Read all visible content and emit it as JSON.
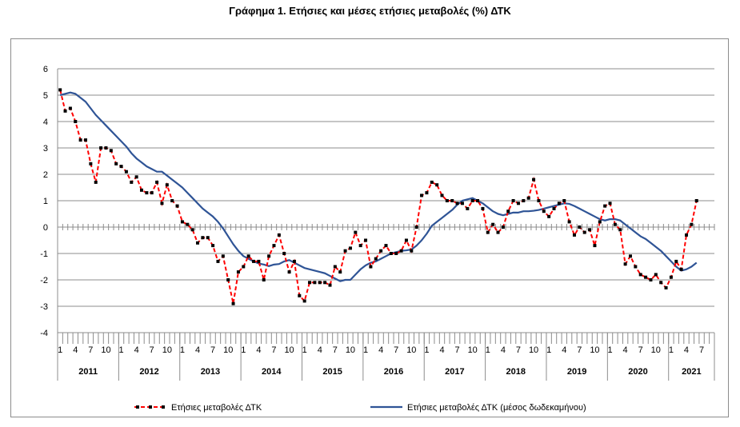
{
  "title": "Γράφημα 1. Ετήσιες και μέσες ετήσιες μεταβολές (%) ΔΤΚ",
  "chart_data": {
    "type": "line",
    "title": "Γράφημα 1. Ετήσιες και μέσες ετήσιες μεταβολές (%) ΔΤΚ",
    "ylim": [
      -4,
      6
    ],
    "yticks": [
      -4,
      -3,
      -2,
      -1,
      0,
      1,
      2,
      3,
      4,
      5,
      6
    ],
    "grid": true,
    "legend_position": "bottom",
    "month_labels": [
      "1",
      "4",
      "7",
      "10"
    ],
    "years": [
      "2011",
      "2012",
      "2013",
      "2014",
      "2015",
      "2016",
      "2017",
      "2018",
      "2019",
      "2020",
      "2021"
    ],
    "x_start": "2011-01",
    "x_end": "2021-09",
    "series": [
      {
        "name": "Ετήσιες μεταβολές ΔΤΚ",
        "color": "#ff0000",
        "marker_color": "#000000",
        "style": "dashed-with-markers",
        "values": [
          5.2,
          4.4,
          4.5,
          4.0,
          3.3,
          3.3,
          2.4,
          1.7,
          3.0,
          3.0,
          2.9,
          2.4,
          2.3,
          2.1,
          1.7,
          1.9,
          1.4,
          1.3,
          1.3,
          1.7,
          0.9,
          1.6,
          1.0,
          0.8,
          0.2,
          0.1,
          -0.1,
          -0.6,
          -0.4,
          -0.4,
          -0.7,
          -1.3,
          -1.1,
          -2.0,
          -2.9,
          -1.7,
          -1.5,
          -1.1,
          -1.3,
          -1.3,
          -2.0,
          -1.1,
          -0.7,
          -0.3,
          -1.0,
          -1.7,
          -1.3,
          -2.6,
          -2.8,
          -2.1,
          -2.1,
          -2.1,
          -2.1,
          -2.2,
          -1.5,
          -1.7,
          -0.9,
          -0.8,
          -0.2,
          -0.7,
          -0.5,
          -1.5,
          -1.2,
          -0.9,
          -0.7,
          -1.0,
          -1.0,
          -0.9,
          -0.5,
          -0.9,
          0.0,
          1.2,
          1.3,
          1.7,
          1.6,
          1.2,
          1.0,
          1.0,
          0.9,
          0.9,
          0.7,
          1.0,
          1.0,
          0.7,
          -0.2,
          0.1,
          -0.2,
          0.0,
          0.6,
          1.0,
          0.9,
          1.0,
          1.1,
          1.8,
          1.0,
          0.6,
          0.4,
          0.7,
          0.9,
          1.0,
          0.2,
          -0.3,
          0.0,
          -0.2,
          -0.1,
          -0.7,
          0.2,
          0.8,
          0.9,
          0.1,
          -0.1,
          -1.4,
          -1.1,
          -1.5,
          -1.8,
          -1.9,
          -2.0,
          -1.8,
          -2.1,
          -2.3,
          -1.9,
          -1.3,
          -1.6,
          -0.3,
          0.1,
          1.0
        ]
      },
      {
        "name": "Ετήσιες μεταβολές ΔΤΚ (μέσος δωδεκαμήνου)",
        "color": "#2f5496",
        "style": "solid",
        "values": [
          5.0,
          5.05,
          5.1,
          5.05,
          4.9,
          4.75,
          4.5,
          4.25,
          4.05,
          3.85,
          3.65,
          3.45,
          3.25,
          3.05,
          2.8,
          2.6,
          2.45,
          2.3,
          2.2,
          2.1,
          2.1,
          1.95,
          1.8,
          1.65,
          1.5,
          1.3,
          1.1,
          0.9,
          0.7,
          0.55,
          0.4,
          0.2,
          -0.05,
          -0.35,
          -0.65,
          -0.9,
          -1.1,
          -1.2,
          -1.3,
          -1.38,
          -1.42,
          -1.48,
          -1.42,
          -1.4,
          -1.3,
          -1.25,
          -1.35,
          -1.45,
          -1.55,
          -1.6,
          -1.65,
          -1.7,
          -1.75,
          -1.85,
          -1.95,
          -2.05,
          -2.0,
          -2.0,
          -1.8,
          -1.6,
          -1.45,
          -1.35,
          -1.3,
          -1.2,
          -1.1,
          -1.0,
          -0.95,
          -0.9,
          -0.88,
          -0.85,
          -0.7,
          -0.5,
          -0.25,
          0.05,
          0.2,
          0.35,
          0.5,
          0.65,
          0.85,
          1.0,
          1.05,
          1.1,
          1.0,
          0.9,
          0.75,
          0.6,
          0.5,
          0.45,
          0.5,
          0.55,
          0.55,
          0.6,
          0.6,
          0.62,
          0.65,
          0.7,
          0.75,
          0.8,
          0.85,
          0.9,
          0.88,
          0.8,
          0.7,
          0.6,
          0.5,
          0.4,
          0.3,
          0.25,
          0.3,
          0.3,
          0.25,
          0.1,
          -0.05,
          -0.2,
          -0.35,
          -0.45,
          -0.6,
          -0.75,
          -0.9,
          -1.1,
          -1.3,
          -1.5,
          -1.65,
          -1.6,
          -1.5,
          -1.35
        ]
      }
    ]
  }
}
